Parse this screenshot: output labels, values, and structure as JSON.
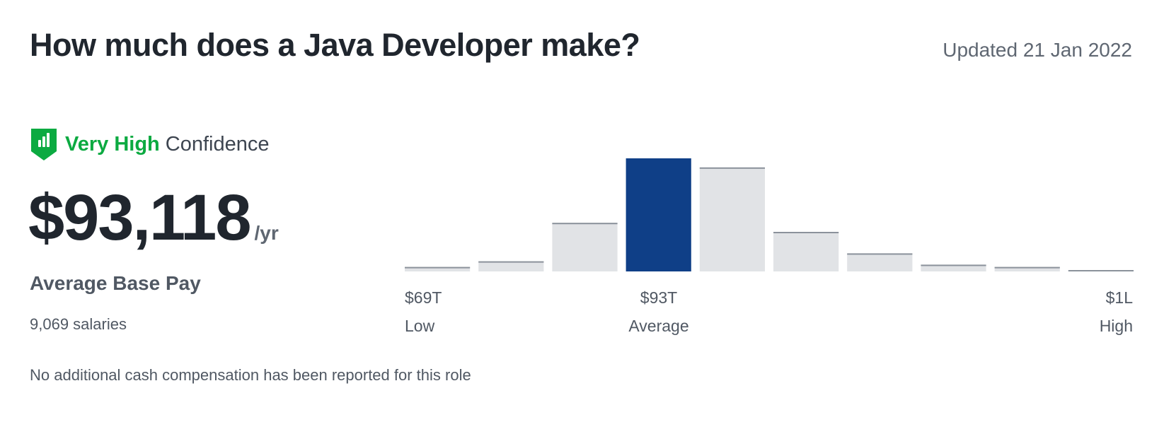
{
  "header": {
    "title": "How much does a Java Developer make?",
    "updated": "Updated 21 Jan 2022"
  },
  "confidence": {
    "icon": "shield-bar-chart-icon",
    "level": "Very High",
    "word": "Confidence",
    "color": "#0caa41"
  },
  "pay": {
    "amount": "$93,118",
    "unit": "/yr",
    "label": "Average Base Pay",
    "salaries": "9,069 salaries"
  },
  "note": "No additional cash compensation has been reported for this role",
  "chart_data": {
    "type": "bar",
    "values": [
      4,
      9,
      43,
      100,
      92,
      35,
      16,
      6,
      4,
      1
    ],
    "highlight_index": 3,
    "ylim": [
      0,
      100
    ],
    "colors": {
      "bar": "#e1e3e6",
      "bar_top": "#8b929b",
      "highlight": "#0f3f87"
    },
    "ticks": [
      {
        "value": "$69T",
        "label": "Low"
      },
      {
        "value": "$93T",
        "label": "Average"
      },
      {
        "value": "$1L",
        "label": "High"
      }
    ]
  }
}
